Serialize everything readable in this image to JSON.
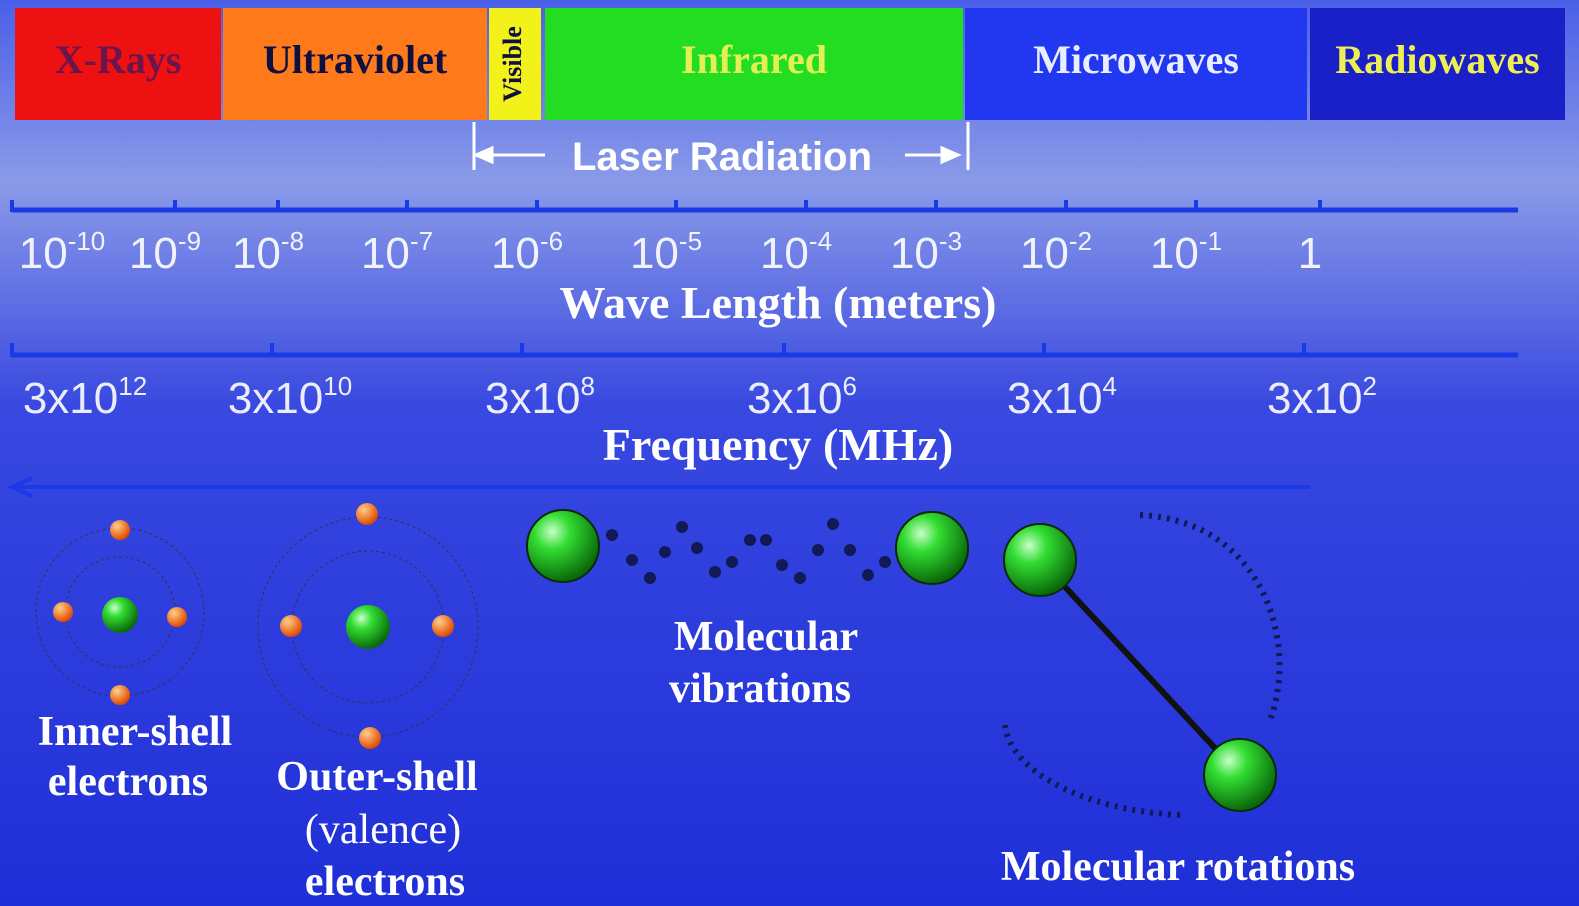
{
  "bands": [
    "X-Rays",
    "Ultraviolet",
    "Visible",
    "Infrared",
    "Microwaves",
    "Radiowaves"
  ],
  "laser": "Laser Radiation",
  "wavelength": {
    "title": "Wave Length (meters)",
    "labels": [
      {
        "base": "10",
        "exp": "-10"
      },
      {
        "base": "10",
        "exp": "-9"
      },
      {
        "base": "10",
        "exp": "-8"
      },
      {
        "base": "10",
        "exp": "-7"
      },
      {
        "base": "10",
        "exp": "-6"
      },
      {
        "base": "10",
        "exp": "-5"
      },
      {
        "base": "10",
        "exp": "-4"
      },
      {
        "base": "10",
        "exp": "-3"
      },
      {
        "base": "10",
        "exp": "-2"
      },
      {
        "base": "10",
        "exp": "-1"
      },
      {
        "base": "1"
      }
    ]
  },
  "frequency": {
    "title": "Frequency (MHz)",
    "labels": [
      {
        "base": "3x10",
        "exp": "12"
      },
      {
        "base": "3x10",
        "exp": "10"
      },
      {
        "base": "3x10",
        "exp": "8"
      },
      {
        "base": "3x10",
        "exp": "6"
      },
      {
        "base": "3x10",
        "exp": "4"
      },
      {
        "base": "3x10",
        "exp": "2"
      }
    ]
  },
  "captions": {
    "inner": [
      "Inner-shell",
      "electrons"
    ],
    "outer": [
      "Outer-shell",
      "(valence)",
      "electrons"
    ],
    "vibrations": [
      "Molecular",
      "vibrations"
    ],
    "rotations": "Molecular rotations"
  }
}
